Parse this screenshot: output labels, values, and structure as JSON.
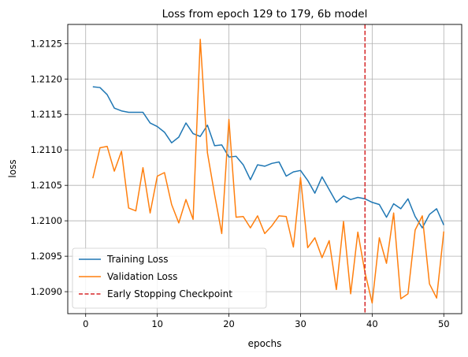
{
  "chart_data": {
    "type": "line",
    "title": "Loss from epoch 129 to 179, 6b model",
    "xlabel": "epochs",
    "ylabel": "loss",
    "xlim": [
      -2.5,
      52.5
    ],
    "ylim": [
      1.20869,
      1.21277
    ],
    "xticks": [
      0,
      10,
      20,
      30,
      40,
      50
    ],
    "yticks": [
      1.209,
      1.2095,
      1.21,
      1.2105,
      1.211,
      1.2115,
      1.212,
      1.2125
    ],
    "ytick_labels": [
      "1.2090",
      "1.2095",
      "1.2100",
      "1.2105",
      "1.2110",
      "1.2115",
      "1.2120",
      "1.2125"
    ],
    "grid": true,
    "legend_position": "lower-left",
    "x": [
      1,
      2,
      3,
      4,
      5,
      6,
      7,
      8,
      9,
      10,
      11,
      12,
      13,
      14,
      15,
      16,
      17,
      18,
      19,
      20,
      21,
      22,
      23,
      24,
      25,
      26,
      27,
      28,
      29,
      30,
      31,
      32,
      33,
      34,
      35,
      36,
      37,
      38,
      39,
      40,
      41,
      42,
      43,
      44,
      45,
      46,
      47,
      48,
      49,
      50
    ],
    "series": [
      {
        "name": "Training Loss",
        "color": "#1f77b4",
        "style": "solid",
        "values": [
          1.21189,
          1.21188,
          1.21178,
          1.21159,
          1.21155,
          1.21153,
          1.21153,
          1.21153,
          1.21138,
          1.21133,
          1.21125,
          1.2111,
          1.21118,
          1.21138,
          1.21123,
          1.21119,
          1.21135,
          1.21106,
          1.21107,
          1.2109,
          1.21091,
          1.21079,
          1.21058,
          1.21079,
          1.21077,
          1.21081,
          1.21083,
          1.21063,
          1.21069,
          1.21071,
          1.21057,
          1.21039,
          1.21062,
          1.21044,
          1.21026,
          1.21035,
          1.2103,
          1.21033,
          1.21031,
          1.21026,
          1.21023,
          1.21005,
          1.21024,
          1.21017,
          1.21031,
          1.21006,
          1.2099,
          1.21009,
          1.21017,
          1.20994
        ]
      },
      {
        "name": "Validation Loss",
        "color": "#ff7f0e",
        "style": "solid",
        "values": [
          1.2106,
          1.21103,
          1.21105,
          1.2107,
          1.21098,
          1.21018,
          1.21014,
          1.21075,
          1.21011,
          1.21063,
          1.21068,
          1.21023,
          1.20997,
          1.2103,
          1.21002,
          1.21256,
          1.21096,
          1.21037,
          1.20982,
          1.21143,
          1.21005,
          1.21006,
          1.2099,
          1.21007,
          1.20982,
          1.20993,
          1.21007,
          1.21006,
          1.20963,
          1.21061,
          1.20962,
          1.20976,
          1.20948,
          1.20972,
          1.20903,
          1.20999,
          1.20897,
          1.20984,
          1.20927,
          1.20884,
          1.20976,
          1.2094,
          1.21011,
          1.2089,
          1.20897,
          1.20987,
          1.21007,
          1.20911,
          1.20891,
          1.20985
        ]
      }
    ],
    "vlines": [
      {
        "name": "Early Stopping Checkpoint",
        "x": 39,
        "color": "#d62728",
        "style": "dashed"
      }
    ]
  }
}
